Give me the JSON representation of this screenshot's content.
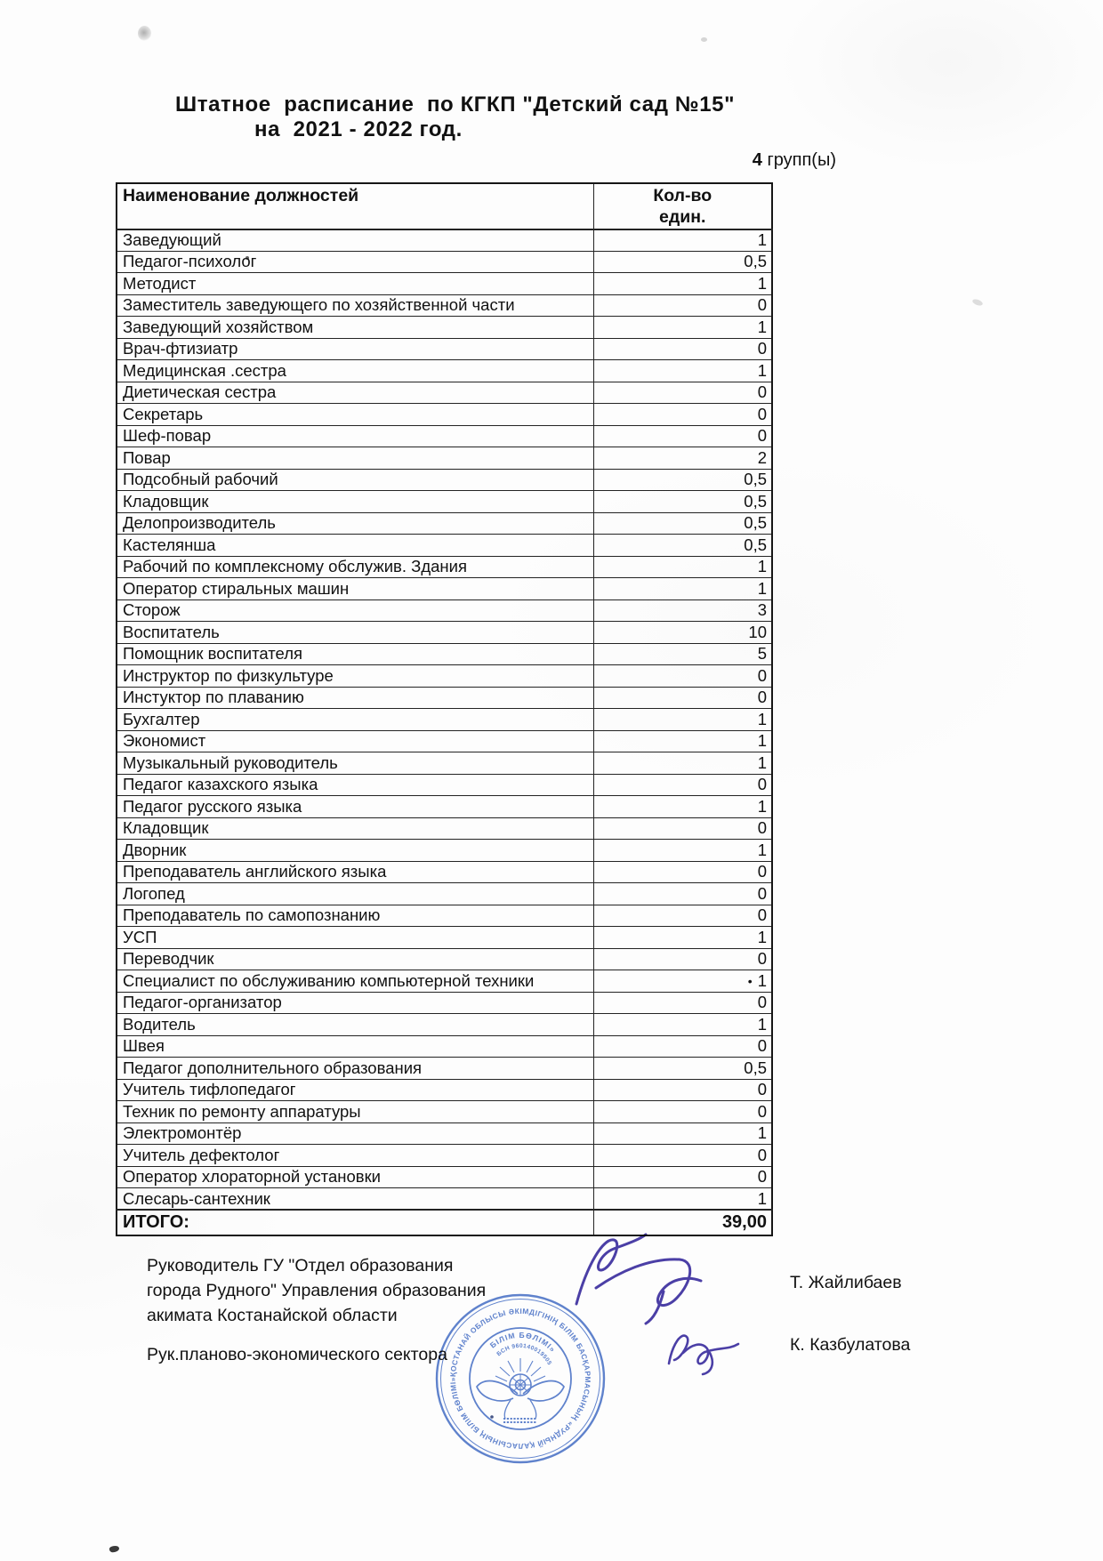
{
  "document": {
    "title_line1": "Штатное  расписание  по КГКП \"Детский сад №15\"",
    "title_line2": "на  2021 - 2022 год.",
    "groups_count": "4",
    "groups_label": " групп(ы)"
  },
  "table": {
    "col_position_header": "Наименование должностей",
    "col_count_line1": "Кол-во",
    "col_count_line2": "един.",
    "rows": [
      {
        "label": "Заведующий",
        "value": "1"
      },
      {
        "label": "Педагог-психолог",
        "value": "0,5"
      },
      {
        "label": "Методист",
        "value": "1"
      },
      {
        "label": "Заместитель заведующего по хозяйственной части",
        "value": "0"
      },
      {
        "label": "Заведующий хозяйством",
        "value": "1"
      },
      {
        "label": "Врач-фтизиатр",
        "value": "0"
      },
      {
        "label": "Медицинская .сестра",
        "value": "1"
      },
      {
        "label": "Диетическая сестра",
        "value": "0"
      },
      {
        "label": "Секретарь",
        "value": "0"
      },
      {
        "label": "Шеф-повар",
        "value": "0"
      },
      {
        "label": "Повар",
        "value": "2"
      },
      {
        "label": "Подсобный рабочий",
        "value": "0,5"
      },
      {
        "label": "Кладовщик",
        "value": "0,5"
      },
      {
        "label": "Делопроизводитель",
        "value": "0,5"
      },
      {
        "label": "Кастелянша",
        "value": "0,5"
      },
      {
        "label": "Рабочий по комплексному обслужив. Здания",
        "value": "1"
      },
      {
        "label": "Оператор стиральных машин",
        "value": "1"
      },
      {
        "label": "Сторож",
        "value": "3"
      },
      {
        "label": "Воспитатель",
        "value": "10"
      },
      {
        "label": "Помощник воспитателя",
        "value": "5"
      },
      {
        "label": "Инструктор по физкультуре",
        "value": "0"
      },
      {
        "label": "Инстуктор по плаванию",
        "value": "0"
      },
      {
        "label": "Бухгалтер",
        "value": "1"
      },
      {
        "label": "Экономист",
        "value": "1"
      },
      {
        "label": "Музыкальный руководитель",
        "value": "1"
      },
      {
        "label": "Педагог  казахского языка",
        "value": "0"
      },
      {
        "label": "Педагог русского языка",
        "value": "1"
      },
      {
        "label": "Кладовщик",
        "value": "0"
      },
      {
        "label": "Дворник",
        "value": "1"
      },
      {
        "label": "Преподаватель  английского языка",
        "value": "0"
      },
      {
        "label": "Логопед",
        "value": "0"
      },
      {
        "label": "Преподаватель по самопознанию",
        "value": "0"
      },
      {
        "label": "УСП",
        "value": "1"
      },
      {
        "label": "Переводчик",
        "value": "0"
      },
      {
        "label": "Специалист по обслуживанию компьютерной техники",
        "value": "1",
        "marker": "•"
      },
      {
        "label": "Педагог-организатор",
        "value": "0"
      },
      {
        "label": "Водитель",
        "value": "1"
      },
      {
        "label": "Швея",
        "value": "0"
      },
      {
        "label": "Педагог дополнительного образования",
        "value": "0,5"
      },
      {
        "label": "Учитель тифлопедагог",
        "value": "0"
      },
      {
        "label": "Техник по ремонту аппаратуры",
        "value": "0"
      },
      {
        "label": "Электромонтёр",
        "value": "1"
      },
      {
        "label": "Учитель дефектолог",
        "value": "0"
      },
      {
        "label": "Оператор хлораторной установки",
        "value": "0"
      },
      {
        "label": "Слесарь-сантехник",
        "value": "1"
      }
    ],
    "total_label": "ИТОГО:",
    "total_value": "39,00"
  },
  "footer": {
    "approver1_title_lines": [
      "Руководитель ГУ \"Отдел образования",
      "города Рудного\" Управления образования",
      "акимата Костанайской области"
    ],
    "approver1_name": "Т. Жайлибаев",
    "approver2_title": "Рук.планово-экономического сектора",
    "approver2_name": "К. Казбулатова"
  },
  "stamp": {
    "outer_text": "ҚОСТАНАЙ ОБЛЫСЫ ӘКІМДІГІНІҢ БІЛІМ БАСҚАРМАСЫНЫҢ «РУДНЫЙ ҚАЛАСЫНЫҢ БІЛІМ БӨЛІМІ» МЕМЛЕКЕТТІК МЕКЕМЕСІ",
    "inner_text": "БІЛІМ БӨЛІМІ»",
    "bsn_text": "БСН 960140019505",
    "color": "#4a72c8"
  },
  "colors": {
    "ink": "#111111",
    "table_border": "#232323",
    "stamp_blue": "#4a72c8",
    "signature_ink": "#4b3fa7",
    "paper": "#fdfdfd"
  }
}
